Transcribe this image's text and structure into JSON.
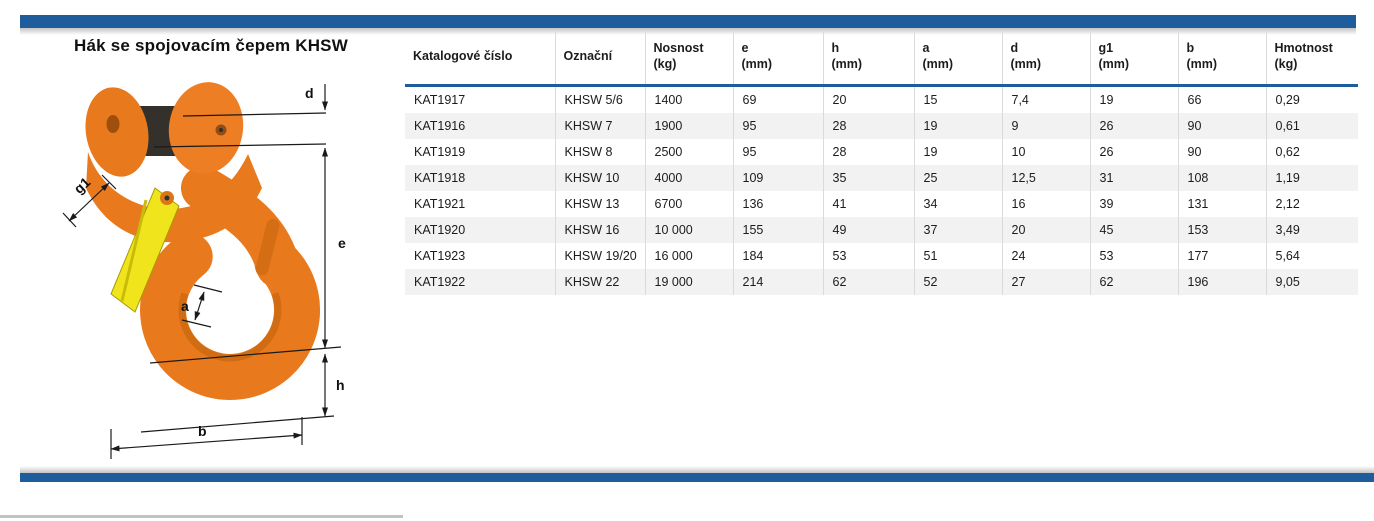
{
  "page": {
    "title": "Hák se spojovacím čepem KHSW"
  },
  "diagram": {
    "labels": {
      "d": "d",
      "e": "e",
      "h": "h",
      "a": "a",
      "b": "b",
      "g1": "g1"
    },
    "colors": {
      "hook_orange": "#E8791D",
      "latch_yellow": "#F0E51C",
      "pin_dark": "#34302B",
      "dimension_line": "#1a1a1a"
    }
  },
  "table": {
    "columns": [
      {
        "label": "Katalogové číslo",
        "sub": ""
      },
      {
        "label": "Označní",
        "sub": ""
      },
      {
        "label": "Nosnost",
        "sub": "(kg)"
      },
      {
        "label": "e",
        "sub": "(mm)"
      },
      {
        "label": "h",
        "sub": "(mm)"
      },
      {
        "label": "a",
        "sub": "(mm)"
      },
      {
        "label": "d",
        "sub": "(mm)"
      },
      {
        "label": "g1",
        "sub": "(mm)"
      },
      {
        "label": "b",
        "sub": "(mm)"
      },
      {
        "label": "Hmotnost",
        "sub": "(kg)"
      }
    ],
    "rows": [
      [
        "KAT1917",
        "KHSW 5/6",
        "1400",
        "69",
        "20",
        "15",
        "7,4",
        "19",
        "66",
        "0,29"
      ],
      [
        "KAT1916",
        "KHSW 7",
        "1900",
        "95",
        "28",
        "19",
        "9",
        "26",
        "90",
        "0,61"
      ],
      [
        "KAT1919",
        "KHSW 8",
        "2500",
        "95",
        "28",
        "19",
        "10",
        "26",
        "90",
        "0,62"
      ],
      [
        "KAT1918",
        "KHSW 10",
        "4000",
        "109",
        "35",
        "25",
        "12,5",
        "31",
        "108",
        "1,19"
      ],
      [
        "KAT1921",
        "KHSW 13",
        "6700",
        "136",
        "41",
        "34",
        "16",
        "39",
        "131",
        "2,12"
      ],
      [
        "KAT1920",
        "KHSW 16",
        "10 000",
        "155",
        "49",
        "37",
        "20",
        "45",
        "153",
        "3,49"
      ],
      [
        "KAT1923",
        "KHSW 19/20",
        "16 000",
        "184",
        "53",
        "51",
        "24",
        "53",
        "177",
        "5,64"
      ],
      [
        "KAT1922",
        "KHSW 22",
        "19 000",
        "214",
        "62",
        "52",
        "27",
        "62",
        "196",
        "9,05"
      ]
    ]
  },
  "colors": {
    "accent_blue": "#1E5C9C",
    "row_alt": "#F2F2F2",
    "grid_line": "#DADADA",
    "bottom_rule": "#C2C2C2"
  }
}
